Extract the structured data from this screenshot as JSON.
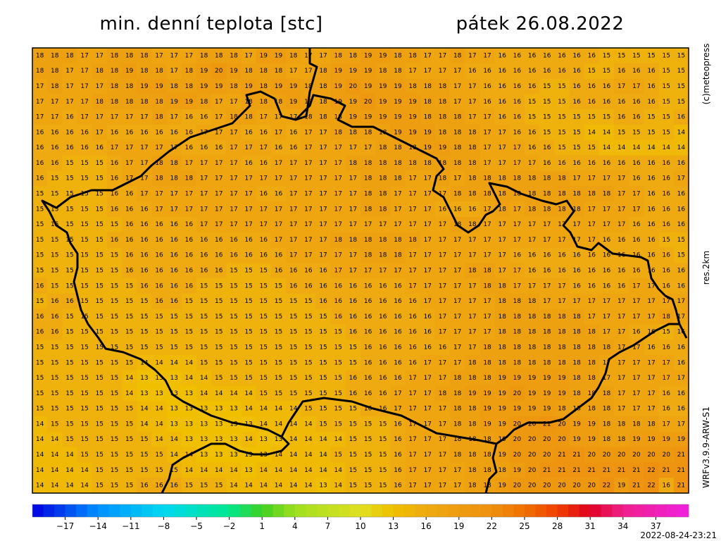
{
  "header": {
    "title": "min. denní teplota [stc]",
    "date": "pátek 26.08.2022"
  },
  "side": {
    "copyright": "(c)meteopress",
    "resolution": "res.2km",
    "model": "WRFv3.9.9-ARW-S1",
    "timestamp": "2022-08-24-23:21"
  },
  "colorscale": [
    [
      -20,
      "#0000e0"
    ],
    [
      -14,
      "#0090ff"
    ],
    [
      -8,
      "#00d8f0"
    ],
    [
      -2,
      "#00e890"
    ],
    [
      1,
      "#40d020"
    ],
    [
      4,
      "#a0e020"
    ],
    [
      10,
      "#e0e020"
    ],
    [
      13,
      "#f0c000"
    ],
    [
      16,
      "#eeaa10"
    ],
    [
      19,
      "#ee9c10"
    ],
    [
      22,
      "#ee9010"
    ],
    [
      25,
      "#f07000"
    ],
    [
      28,
      "#f04000"
    ],
    [
      31,
      "#e00020"
    ],
    [
      34,
      "#f0208c"
    ],
    [
      40,
      "#f020e0"
    ]
  ],
  "colorbar": {
    "lim": [
      -20,
      40
    ],
    "ticks": [
      {
        "value": -17,
        "label": "−17"
      },
      {
        "value": -14,
        "label": "−14"
      },
      {
        "value": -11,
        "label": "−11"
      },
      {
        "value": -8,
        "label": "−8"
      },
      {
        "value": -5,
        "label": "−5"
      },
      {
        "value": -2,
        "label": "−2"
      },
      1,
      4,
      7,
      10,
      13,
      16,
      19,
      22,
      25,
      28,
      31,
      34,
      37
    ]
  },
  "grid": [
    [
      18,
      18,
      18,
      17,
      17,
      18,
      18,
      18,
      17,
      17,
      17,
      18,
      18,
      18,
      17,
      19,
      19,
      18,
      17,
      17,
      18,
      18,
      19,
      19,
      18,
      18,
      17,
      17,
      18,
      17,
      17,
      16,
      16,
      16,
      16,
      16,
      16,
      16,
      15,
      15,
      15,
      15,
      15,
      15
    ],
    [
      18,
      18,
      17,
      17,
      18,
      18,
      19,
      18,
      18,
      17,
      18,
      19,
      20,
      19,
      18,
      18,
      18,
      17,
      17,
      18,
      19,
      19,
      19,
      18,
      18,
      17,
      17,
      17,
      17,
      16,
      16,
      16,
      16,
      16,
      16,
      16,
      16,
      15,
      15,
      16,
      16,
      16,
      15,
      15
    ],
    [
      17,
      18,
      17,
      17,
      17,
      18,
      18,
      19,
      19,
      18,
      18,
      19,
      19,
      18,
      19,
      18,
      19,
      19,
      18,
      18,
      19,
      20,
      19,
      19,
      19,
      18,
      18,
      18,
      17,
      17,
      16,
      16,
      16,
      16,
      15,
      15,
      16,
      16,
      16,
      17,
      17,
      16,
      15,
      15
    ],
    [
      17,
      17,
      17,
      17,
      18,
      18,
      18,
      18,
      18,
      19,
      19,
      18,
      17,
      17,
      18,
      18,
      18,
      19,
      18,
      18,
      19,
      19,
      20,
      19,
      19,
      19,
      18,
      18,
      17,
      17,
      16,
      16,
      16,
      15,
      15,
      15,
      16,
      16,
      16,
      16,
      16,
      16,
      15,
      15
    ],
    [
      17,
      17,
      16,
      17,
      17,
      17,
      17,
      17,
      18,
      17,
      16,
      16,
      17,
      18,
      18,
      17,
      17,
      17,
      18,
      18,
      18,
      19,
      19,
      19,
      19,
      19,
      18,
      18,
      18,
      17,
      17,
      16,
      16,
      15,
      15,
      15,
      15,
      15,
      15,
      16,
      16,
      15,
      15,
      16
    ],
    [
      16,
      16,
      16,
      16,
      17,
      16,
      16,
      16,
      16,
      16,
      16,
      17,
      17,
      17,
      16,
      16,
      17,
      16,
      17,
      17,
      18,
      18,
      18,
      18,
      19,
      19,
      19,
      18,
      18,
      18,
      17,
      17,
      16,
      16,
      15,
      15,
      15,
      14,
      14,
      15,
      15,
      15,
      15,
      14
    ],
    [
      16,
      16,
      16,
      16,
      16,
      17,
      17,
      17,
      17,
      17,
      16,
      16,
      16,
      17,
      17,
      17,
      16,
      16,
      17,
      17,
      17,
      17,
      17,
      18,
      18,
      18,
      19,
      19,
      18,
      18,
      17,
      17,
      17,
      16,
      16,
      15,
      15,
      15,
      14,
      14,
      14,
      14,
      14,
      14
    ],
    [
      16,
      16,
      15,
      15,
      15,
      16,
      17,
      17,
      18,
      18,
      17,
      17,
      17,
      17,
      16,
      16,
      17,
      17,
      17,
      17,
      17,
      18,
      18,
      18,
      18,
      18,
      18,
      18,
      18,
      18,
      17,
      17,
      17,
      17,
      16,
      16,
      16,
      16,
      16,
      16,
      16,
      16,
      16,
      16
    ],
    [
      16,
      15,
      15,
      15,
      15,
      16,
      17,
      17,
      18,
      18,
      18,
      17,
      17,
      17,
      17,
      17,
      17,
      17,
      17,
      17,
      17,
      17,
      18,
      18,
      18,
      17,
      17,
      18,
      17,
      18,
      18,
      18,
      18,
      18,
      18,
      18,
      17,
      17,
      17,
      17,
      16,
      16,
      16,
      17
    ],
    [
      15,
      15,
      15,
      15,
      15,
      16,
      16,
      17,
      17,
      17,
      17,
      17,
      17,
      17,
      17,
      16,
      16,
      17,
      17,
      17,
      17,
      17,
      18,
      18,
      17,
      17,
      17,
      17,
      18,
      18,
      18,
      18,
      18,
      18,
      18,
      18,
      18,
      18,
      18,
      17,
      17,
      16,
      16,
      16
    ],
    [
      15,
      15,
      15,
      15,
      15,
      16,
      16,
      16,
      17,
      17,
      17,
      17,
      17,
      17,
      17,
      17,
      17,
      17,
      17,
      17,
      17,
      17,
      18,
      18,
      17,
      17,
      17,
      16,
      16,
      16,
      17,
      18,
      17,
      18,
      18,
      18,
      18,
      17,
      17,
      17,
      17,
      16,
      16,
      16
    ],
    [
      15,
      15,
      15,
      15,
      15,
      15,
      16,
      16,
      16,
      16,
      16,
      17,
      17,
      17,
      17,
      17,
      17,
      17,
      17,
      17,
      17,
      17,
      17,
      17,
      17,
      17,
      17,
      17,
      18,
      18,
      17,
      17,
      17,
      17,
      17,
      17,
      17,
      17,
      17,
      17,
      16,
      16,
      16,
      16
    ],
    [
      15,
      15,
      15,
      15,
      15,
      16,
      16,
      16,
      16,
      16,
      16,
      16,
      16,
      16,
      16,
      16,
      17,
      17,
      17,
      17,
      18,
      18,
      18,
      18,
      18,
      18,
      17,
      17,
      17,
      17,
      17,
      17,
      17,
      17,
      17,
      17,
      17,
      17,
      16,
      16,
      16,
      16,
      15,
      15
    ],
    [
      15,
      15,
      15,
      15,
      15,
      15,
      16,
      16,
      16,
      16,
      16,
      16,
      16,
      16,
      16,
      16,
      16,
      17,
      17,
      17,
      17,
      17,
      18,
      18,
      18,
      17,
      17,
      17,
      17,
      17,
      17,
      17,
      16,
      16,
      16,
      16,
      16,
      16,
      16,
      16,
      16,
      16,
      16,
      15
    ],
    [
      15,
      15,
      15,
      15,
      15,
      15,
      16,
      16,
      16,
      16,
      16,
      16,
      16,
      15,
      15,
      15,
      16,
      16,
      16,
      16,
      17,
      17,
      17,
      17,
      17,
      17,
      17,
      17,
      17,
      18,
      18,
      17,
      17,
      16,
      16,
      16,
      16,
      16,
      16,
      16,
      16,
      16,
      16,
      16
    ],
    [
      16,
      15,
      15,
      15,
      15,
      15,
      15,
      16,
      16,
      16,
      16,
      15,
      15,
      15,
      15,
      15,
      15,
      16,
      16,
      16,
      16,
      16,
      16,
      16,
      16,
      17,
      17,
      17,
      17,
      17,
      18,
      18,
      17,
      17,
      17,
      17,
      16,
      16,
      16,
      16,
      17,
      17,
      16,
      16
    ],
    [
      15,
      16,
      16,
      15,
      15,
      15,
      15,
      15,
      16,
      16,
      15,
      15,
      15,
      15,
      15,
      15,
      15,
      15,
      15,
      16,
      16,
      16,
      16,
      16,
      16,
      16,
      17,
      17,
      17,
      17,
      17,
      18,
      18,
      18,
      17,
      17,
      17,
      17,
      17,
      17,
      17,
      17,
      17,
      17
    ],
    [
      16,
      16,
      15,
      15,
      15,
      15,
      15,
      15,
      15,
      15,
      15,
      15,
      15,
      15,
      15,
      15,
      15,
      15,
      15,
      15,
      16,
      16,
      16,
      16,
      16,
      16,
      16,
      17,
      17,
      17,
      17,
      18,
      18,
      18,
      18,
      18,
      18,
      17,
      17,
      17,
      17,
      17,
      18,
      17
    ],
    [
      16,
      16,
      15,
      15,
      15,
      15,
      15,
      15,
      15,
      15,
      15,
      15,
      15,
      15,
      15,
      15,
      15,
      15,
      15,
      15,
      15,
      16,
      16,
      16,
      16,
      16,
      16,
      17,
      17,
      17,
      17,
      18,
      18,
      18,
      18,
      18,
      18,
      18,
      17,
      17,
      16,
      16,
      15,
      16
    ],
    [
      15,
      15,
      15,
      15,
      15,
      15,
      15,
      15,
      15,
      15,
      15,
      15,
      15,
      15,
      15,
      15,
      15,
      15,
      15,
      15,
      15,
      15,
      16,
      16,
      16,
      16,
      16,
      16,
      17,
      17,
      18,
      18,
      18,
      18,
      18,
      18,
      18,
      18,
      18,
      17,
      17,
      16,
      16,
      16
    ],
    [
      15,
      15,
      15,
      15,
      15,
      15,
      15,
      14,
      14,
      14,
      14,
      15,
      15,
      15,
      15,
      15,
      15,
      15,
      15,
      15,
      15,
      15,
      16,
      16,
      16,
      16,
      17,
      17,
      17,
      18,
      18,
      18,
      18,
      18,
      18,
      18,
      18,
      18,
      17,
      17,
      17,
      17,
      17,
      16
    ],
    [
      15,
      15,
      15,
      15,
      15,
      15,
      14,
      13,
      13,
      13,
      14,
      14,
      15,
      15,
      15,
      15,
      15,
      15,
      15,
      15,
      15,
      16,
      16,
      16,
      16,
      17,
      17,
      17,
      18,
      18,
      18,
      19,
      19,
      19,
      19,
      19,
      18,
      18,
      17,
      17,
      17,
      17,
      17,
      17
    ],
    [
      15,
      15,
      15,
      15,
      15,
      15,
      14,
      13,
      13,
      13,
      13,
      14,
      14,
      14,
      14,
      15,
      15,
      15,
      15,
      15,
      15,
      16,
      16,
      16,
      17,
      17,
      17,
      18,
      18,
      19,
      19,
      19,
      20,
      19,
      19,
      19,
      18,
      18,
      18,
      17,
      17,
      17,
      16,
      16
    ],
    [
      15,
      15,
      15,
      15,
      15,
      15,
      15,
      14,
      14,
      13,
      13,
      13,
      13,
      13,
      14,
      14,
      14,
      14,
      15,
      15,
      15,
      15,
      16,
      16,
      17,
      17,
      17,
      17,
      18,
      18,
      19,
      19,
      19,
      19,
      19,
      18,
      18,
      18,
      18,
      17,
      17,
      17,
      16,
      16
    ],
    [
      14,
      15,
      15,
      15,
      15,
      15,
      15,
      14,
      14,
      13,
      13,
      13,
      13,
      13,
      13,
      14,
      14,
      14,
      14,
      15,
      15,
      15,
      15,
      15,
      16,
      17,
      17,
      17,
      18,
      18,
      19,
      19,
      20,
      20,
      21,
      20,
      19,
      19,
      18,
      18,
      18,
      18,
      17,
      17
    ],
    [
      14,
      14,
      15,
      15,
      15,
      15,
      15,
      15,
      14,
      14,
      13,
      13,
      13,
      13,
      14,
      13,
      13,
      14,
      14,
      14,
      14,
      15,
      15,
      15,
      16,
      17,
      17,
      17,
      18,
      18,
      18,
      19,
      20,
      20,
      20,
      20,
      19,
      19,
      18,
      18,
      19,
      19,
      19,
      19
    ],
    [
      14,
      14,
      14,
      15,
      15,
      15,
      15,
      15,
      15,
      14,
      14,
      13,
      13,
      13,
      13,
      13,
      14,
      14,
      14,
      14,
      15,
      15,
      15,
      15,
      16,
      17,
      17,
      17,
      18,
      18,
      18,
      19,
      20,
      20,
      20,
      21,
      21,
      20,
      20,
      20,
      20,
      20,
      20,
      21
    ],
    [
      14,
      14,
      14,
      14,
      15,
      15,
      15,
      15,
      15,
      15,
      14,
      14,
      14,
      14,
      13,
      14,
      14,
      14,
      14,
      14,
      14,
      15,
      15,
      15,
      16,
      17,
      17,
      17,
      17,
      18,
      18,
      18,
      19,
      20,
      21,
      21,
      21,
      21,
      21,
      21,
      21,
      22,
      21,
      21
    ],
    [
      14,
      14,
      14,
      14,
      15,
      15,
      15,
      16,
      16,
      16,
      15,
      15,
      15,
      14,
      14,
      14,
      14,
      14,
      14,
      13,
      14,
      15,
      15,
      15,
      16,
      17,
      17,
      17,
      17,
      18,
      18,
      19,
      20,
      20,
      20,
      20,
      20,
      20,
      22,
      19,
      21,
      22,
      16,
      21
    ]
  ]
}
